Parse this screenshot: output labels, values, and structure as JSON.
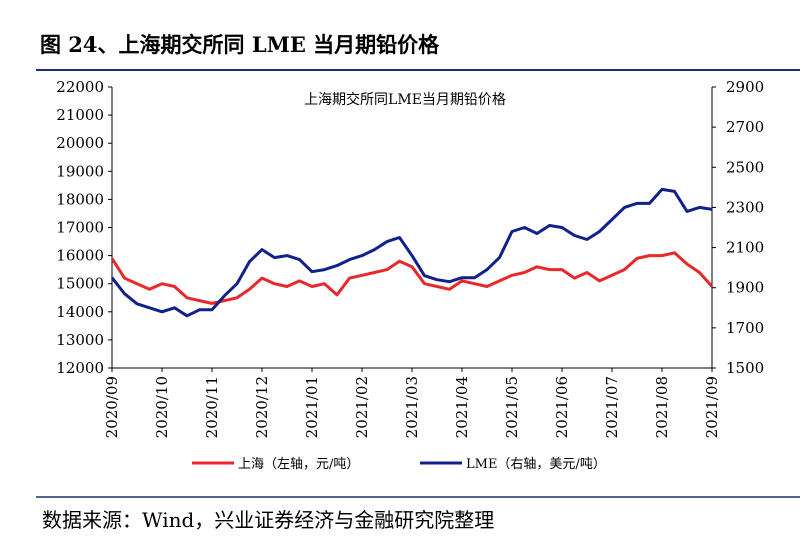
{
  "header": {
    "title": "图 24、上海期交所同 LME 当月期铅价格"
  },
  "chart_data": {
    "type": "line",
    "title": "上海期交所同LME当月期铅价格",
    "categories": [
      "2020/09",
      null,
      null,
      null,
      "2020/10",
      null,
      null,
      null,
      "2020/11",
      null,
      null,
      null,
      "2020/12",
      null,
      null,
      null,
      "2021/01",
      null,
      null,
      null,
      "2021/02",
      null,
      null,
      null,
      "2021/03",
      null,
      null,
      null,
      "2021/04",
      null,
      null,
      null,
      "2021/05",
      null,
      null,
      null,
      "2021/06",
      null,
      null,
      null,
      "2021/07",
      null,
      null,
      null,
      "2021/08",
      null,
      null,
      null,
      "2021/09"
    ],
    "series": [
      {
        "name": "上海（左轴，元/吨）",
        "color": "#e8282b",
        "values": [
          15900,
          15200,
          15000,
          14800,
          15000,
          14900,
          14500,
          14400,
          14300,
          14400,
          14500,
          14800,
          15200,
          15000,
          14900,
          15100,
          14900,
          15000,
          14600,
          15200,
          15300,
          15400,
          15500,
          15800,
          15600,
          15000,
          14900,
          14800,
          15100,
          15000,
          14900,
          15100,
          15300,
          15400,
          15600,
          15500,
          15500,
          15200,
          15400,
          15100,
          15300,
          15500,
          15900,
          16000,
          16000,
          16100,
          15700,
          15400,
          14900
        ]
      },
      {
        "name": "LME（右轴，美元/吨）",
        "color": "#10218b",
        "axis": "y2",
        "values": [
          1950,
          1870,
          1820,
          1800,
          1780,
          1800,
          1760,
          1790,
          1790,
          1860,
          1920,
          2030,
          2090,
          2050,
          2060,
          2040,
          1980,
          1990,
          2010,
          2040,
          2060,
          2090,
          2130,
          2150,
          2060,
          1960,
          1940,
          1930,
          1950,
          1950,
          1990,
          2050,
          2180,
          2200,
          2170,
          2210,
          2200,
          2160,
          2140,
          2180,
          2240,
          2300,
          2320,
          2320,
          2390,
          2380,
          2280,
          2300,
          2290
        ]
      }
    ],
    "ylim": [
      12000,
      22000
    ],
    "yticks": [
      12000,
      13000,
      14000,
      15000,
      16000,
      17000,
      18000,
      19000,
      20000,
      21000,
      22000
    ],
    "y2lim": [
      1500,
      2900
    ],
    "y2ticks": [
      1500,
      1700,
      1900,
      2100,
      2300,
      2500,
      2700,
      2900
    ],
    "legend": "bottom"
  },
  "footer": {
    "source": "数据来源：Wind，兴业证券经济与金融研究院整理"
  }
}
